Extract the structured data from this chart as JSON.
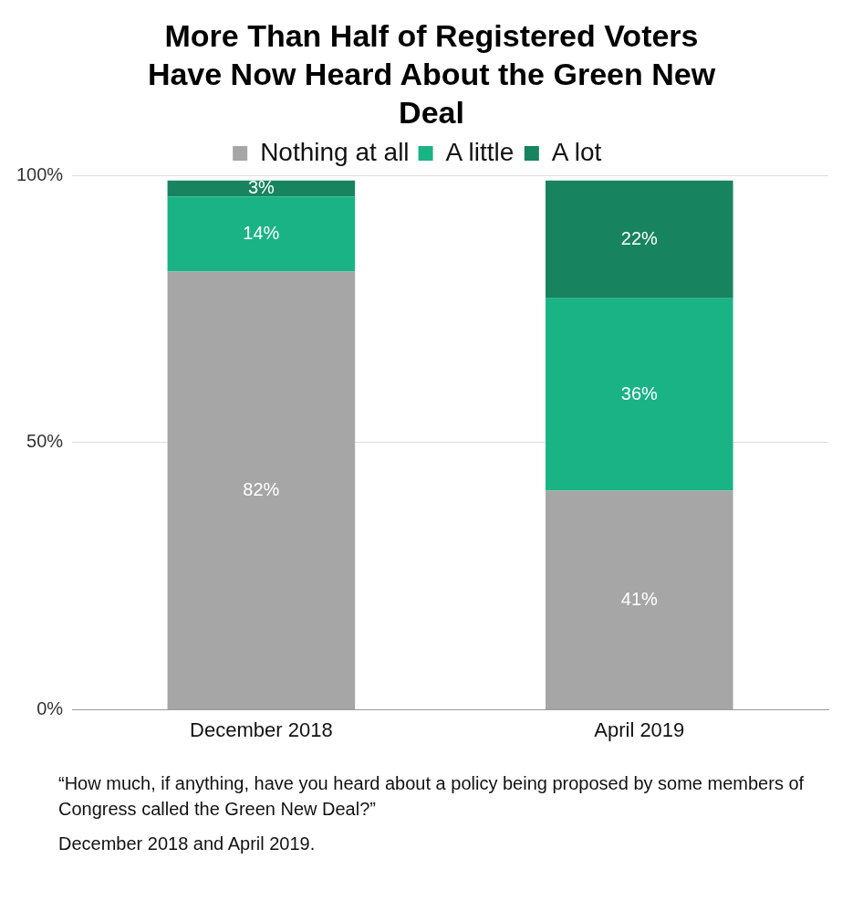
{
  "chart_data": {
    "type": "bar",
    "title": "More Than Half of Registered Voters Have Now Heard About the Green New Deal",
    "categories": [
      "December 2018",
      "April 2019"
    ],
    "series": [
      {
        "name": "Nothing at all",
        "color": "#a6a6a6",
        "values": [
          82,
          41
        ],
        "value_labels": [
          "82%",
          "41%"
        ]
      },
      {
        "name": "A little",
        "color": "#19b386",
        "values": [
          14,
          36
        ],
        "value_labels": [
          "14%",
          "36%"
        ]
      },
      {
        "name": "A lot",
        "color": "#17845f",
        "values": [
          3,
          22
        ],
        "value_labels": [
          "3%",
          "22%"
        ]
      }
    ],
    "stacked": true,
    "ylim": [
      0,
      100
    ],
    "yticks": [
      {
        "value": 0,
        "label": "0%"
      },
      {
        "value": 50,
        "label": "50%"
      },
      {
        "value": 100,
        "label": "100%"
      }
    ],
    "grid": "y",
    "legend": "top",
    "annotations": [
      "“How much, if anything, have you heard about a policy being proposed by some members of Congress called the Green New Deal?”",
      "December 2018 and April 2019."
    ]
  }
}
